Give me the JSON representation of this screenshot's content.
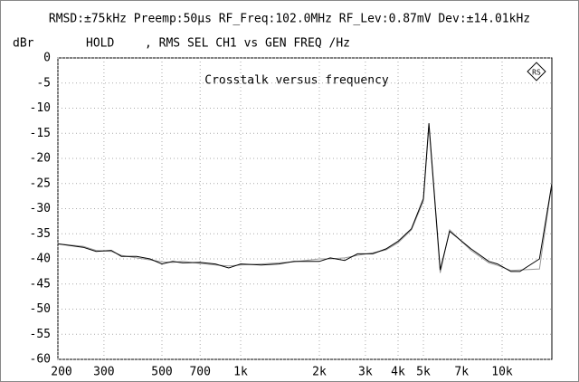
{
  "chart_data": {
    "type": "line",
    "header": "RMSD:±75kHz Preemp:50µs RF_Freq:102.0MHz RF_Lev:0.87mV Dev:±14.01kHz",
    "y_label": "dBr",
    "status": "HOLD",
    "x_label": ", RMS SEL  CH1 vs   GEN FREQ /Hz",
    "title": "Crosstalk versus frequency",
    "x": [
      200,
      250,
      280,
      320,
      350,
      400,
      450,
      500,
      550,
      600,
      700,
      800,
      900,
      1000,
      1200,
      1400,
      1600,
      2000,
      2200,
      2500,
      2800,
      3200,
      3600,
      4000,
      4500,
      5000,
      5250,
      5800,
      6300,
      7600,
      8900,
      9600,
      10800,
      11700,
      13900,
      15500
    ],
    "series": [
      {
        "color": "#000000",
        "values": [
          -37,
          -37.7,
          -38.5,
          -38.3,
          -39.5,
          -39.5,
          -40,
          -41,
          -40.5,
          -40.8,
          -40.7,
          -41,
          -41.8,
          -41,
          -41.2,
          -41,
          -40.5,
          -40.5,
          -39.8,
          -40.3,
          -39,
          -39,
          -38,
          -36.5,
          -34,
          -28,
          -13,
          -42.2,
          -34.5,
          -38,
          -40.5,
          -41,
          -42.5,
          -42.5,
          -40,
          -25
        ]
      },
      {
        "color": "#999999",
        "values": [
          -37,
          -37.5,
          -38.3,
          -38.5,
          -39.3,
          -39.8,
          -40.2,
          -40.6,
          -40.7,
          -40.5,
          -40.9,
          -41.2,
          -41.4,
          -41.2,
          -41,
          -40.8,
          -40.6,
          -40,
          -40,
          -39.8,
          -39.3,
          -38.8,
          -38.2,
          -36.8,
          -34.2,
          -28.5,
          -13.5,
          -42.8,
          -34.2,
          -38.3,
          -40.8,
          -41.3,
          -42.3,
          -42.2,
          -42,
          -25
        ]
      }
    ],
    "xlim": [
      200,
      15500
    ],
    "xscale": "log",
    "xticks": [
      200,
      300,
      500,
      700,
      {
        "value": 1000,
        "label": "1k"
      },
      {
        "value": 2000,
        "label": "2k"
      },
      {
        "value": 3000,
        "label": "3k"
      },
      {
        "value": 4000,
        "label": "4k"
      },
      {
        "value": 5000,
        "label": "5k"
      },
      {
        "value": 7000,
        "label": "7k"
      },
      {
        "value": 10000,
        "label": "10k"
      }
    ],
    "ylim": [
      -60,
      0
    ],
    "yticks": [
      0,
      -5,
      -10,
      -15,
      -20,
      -25,
      -30,
      -35,
      -40,
      -45,
      -50,
      -55,
      -60
    ],
    "grid": true
  }
}
